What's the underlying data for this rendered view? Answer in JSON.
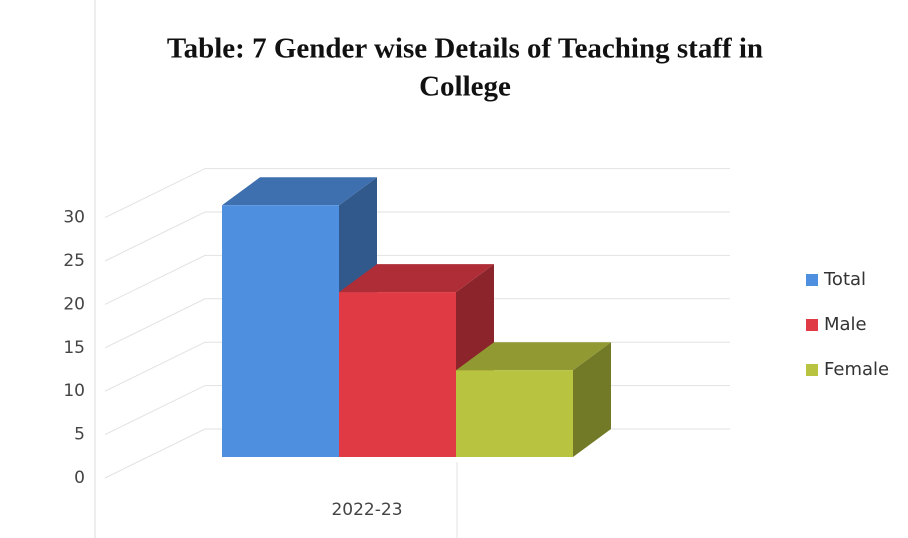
{
  "chart_data": {
    "type": "bar3d",
    "title": [
      "Table: 7 Gender wise Details of Teaching staff in",
      "College"
    ],
    "categories": [
      "2022-23"
    ],
    "series": [
      {
        "name": "Total",
        "color": "#4f8fe0",
        "values": [
          29
        ]
      },
      {
        "name": "Male",
        "color": "#e03a45",
        "values": [
          19
        ]
      },
      {
        "name": "Female",
        "color": "#b8c440",
        "values": [
          10
        ]
      }
    ],
    "ylim": [
      0,
      30
    ],
    "yticks": [
      0,
      5,
      10,
      15,
      20,
      25,
      30
    ],
    "grid": true,
    "legend": "right"
  }
}
